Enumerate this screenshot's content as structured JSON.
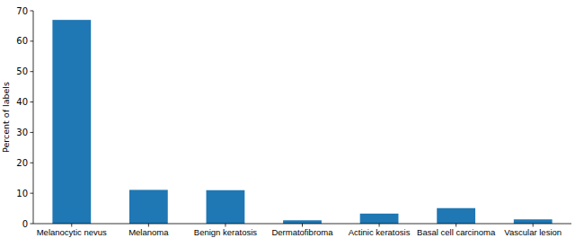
{
  "chart_data": {
    "type": "bar",
    "ylabel": "Percent of labels",
    "categories": [
      "Melanocytic nevus",
      "Melanoma",
      "Benign keratosis",
      "Dermatofibroma",
      "Actinic keratosis",
      "Basal cell carcinoma",
      "Vascular lesion"
    ],
    "values": [
      67,
      11.1,
      11.0,
      1.1,
      3.3,
      5.1,
      1.4
    ],
    "color": "#1f77b4",
    "ylim": [
      0,
      70
    ],
    "yticks": [
      0,
      10,
      20,
      30,
      40,
      50,
      60,
      70
    ],
    "grid": false
  }
}
